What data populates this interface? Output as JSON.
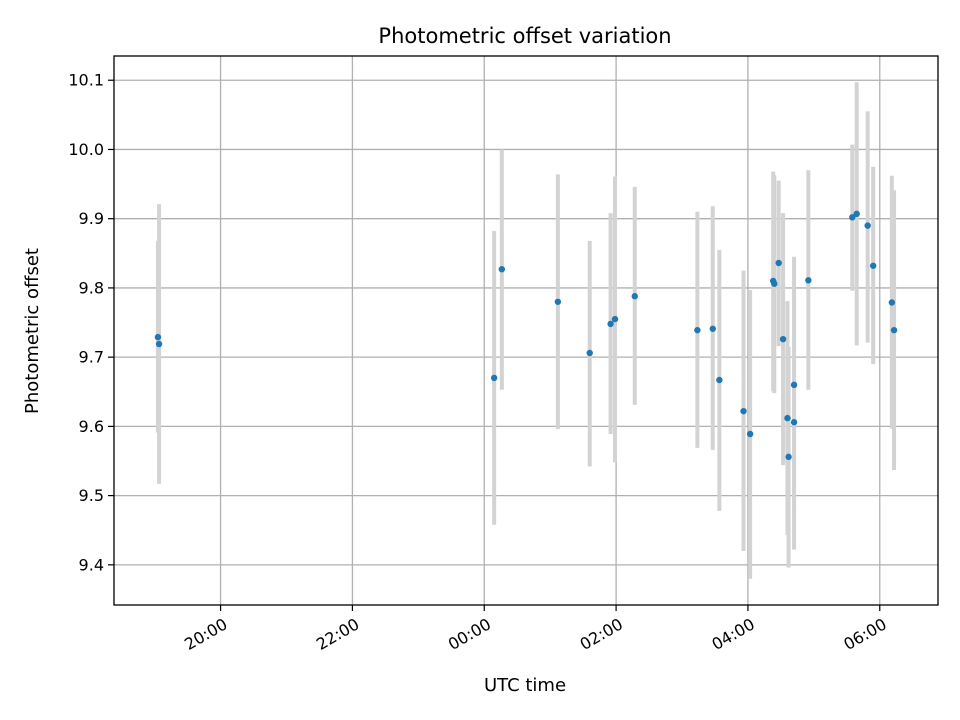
{
  "chart_data": {
    "type": "scatter",
    "title": "Photometric offset variation",
    "xlabel": "UTC time",
    "ylabel": "Photometric offset",
    "grid": true,
    "xlim": [
      "18:23",
      "06:53"
    ],
    "ylim": [
      9.342,
      10.135
    ],
    "x_ticks": [
      "20:00",
      "22:00",
      "00:00",
      "02:00",
      "04:00",
      "06:00"
    ],
    "y_ticks": [
      "9.4",
      "9.5",
      "9.6",
      "9.7",
      "9.8",
      "9.9",
      "10.0",
      "10.1"
    ],
    "colors": {
      "point": "#1f77b4",
      "errorbar": "#d3d3d3",
      "grid": "#b0b0b0"
    },
    "points": [
      {
        "x": "19:03",
        "y": 9.729,
        "ylow": 9.591,
        "yhigh": 9.868
      },
      {
        "x": "19:04",
        "y": 9.719,
        "ylow": 9.517,
        "yhigh": 9.921
      },
      {
        "x": "00:09",
        "y": 9.67,
        "ylow": 9.458,
        "yhigh": 9.882
      },
      {
        "x": "00:16",
        "y": 9.827,
        "ylow": 9.653,
        "yhigh": 10.0
      },
      {
        "x": "01:07",
        "y": 9.78,
        "ylow": 9.596,
        "yhigh": 9.964
      },
      {
        "x": "01:36",
        "y": 9.706,
        "ylow": 9.542,
        "yhigh": 9.868
      },
      {
        "x": "01:55",
        "y": 9.748,
        "ylow": 9.589,
        "yhigh": 9.908
      },
      {
        "x": "01:59",
        "y": 9.755,
        "ylow": 9.548,
        "yhigh": 9.961
      },
      {
        "x": "02:17",
        "y": 9.788,
        "ylow": 9.631,
        "yhigh": 9.946
      },
      {
        "x": "03:14",
        "y": 9.739,
        "ylow": 9.569,
        "yhigh": 9.91
      },
      {
        "x": "03:28",
        "y": 9.741,
        "ylow": 9.566,
        "yhigh": 9.918
      },
      {
        "x": "03:34",
        "y": 9.667,
        "ylow": 9.478,
        "yhigh": 9.855
      },
      {
        "x": "03:56",
        "y": 9.622,
        "ylow": 9.42,
        "yhigh": 9.825
      },
      {
        "x": "04:02",
        "y": 9.589,
        "ylow": 9.38,
        "yhigh": 9.797
      },
      {
        "x": "04:23",
        "y": 9.81,
        "ylow": 9.651,
        "yhigh": 9.968
      },
      {
        "x": "04:24",
        "y": 9.806,
        "ylow": 9.648,
        "yhigh": 9.963
      },
      {
        "x": "04:28",
        "y": 9.836,
        "ylow": 9.716,
        "yhigh": 9.955
      },
      {
        "x": "04:32",
        "y": 9.726,
        "ylow": 9.544,
        "yhigh": 9.908
      },
      {
        "x": "04:36",
        "y": 9.612,
        "ylow": 9.443,
        "yhigh": 9.781
      },
      {
        "x": "04:37",
        "y": 9.556,
        "ylow": 9.396,
        "yhigh": 9.715
      },
      {
        "x": "04:42",
        "y": 9.66,
        "ylow": 9.476,
        "yhigh": 9.845
      },
      {
        "x": "04:42",
        "y": 9.606,
        "ylow": 9.422,
        "yhigh": 9.79
      },
      {
        "x": "04:55",
        "y": 9.811,
        "ylow": 9.653,
        "yhigh": 9.97
      },
      {
        "x": "05:35",
        "y": 9.902,
        "ylow": 9.796,
        "yhigh": 10.007
      },
      {
        "x": "05:39",
        "y": 9.907,
        "ylow": 9.717,
        "yhigh": 10.097
      },
      {
        "x": "05:49",
        "y": 9.89,
        "ylow": 9.721,
        "yhigh": 10.055
      },
      {
        "x": "05:54",
        "y": 9.832,
        "ylow": 9.69,
        "yhigh": 9.975
      },
      {
        "x": "06:11",
        "y": 9.779,
        "ylow": 9.597,
        "yhigh": 9.962
      },
      {
        "x": "06:13",
        "y": 9.739,
        "ylow": 9.537,
        "yhigh": 9.941
      }
    ]
  }
}
